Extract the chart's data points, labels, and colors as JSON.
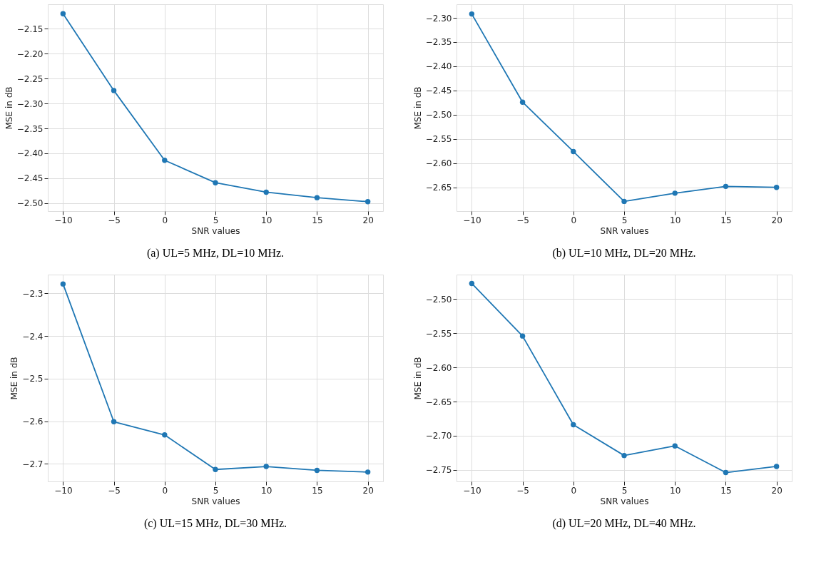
{
  "chart_data": [
    {
      "type": "line",
      "xlabel": "SNR values",
      "ylabel": "MSE in dB",
      "annotations": [
        "(a) UL=5 MHz, DL=10 MHz."
      ],
      "x": [
        -10,
        -5,
        0,
        5,
        10,
        15,
        20
      ],
      "series": [
        {
          "color": "#1f77b4",
          "values": [
            -2.12,
            -2.274,
            -2.414,
            -2.459,
            -2.478,
            -2.489,
            -2.497
          ]
        }
      ],
      "xlim": [
        -11.5,
        21.5
      ],
      "xticks": [
        {
          "value": -10,
          "label": "−10"
        },
        {
          "value": -5,
          "label": "−5"
        },
        {
          "value": 0,
          "label": "0"
        },
        {
          "value": 5,
          "label": "5"
        },
        {
          "value": 10,
          "label": "10"
        },
        {
          "value": 15,
          "label": "15"
        },
        {
          "value": 20,
          "label": "20"
        }
      ],
      "ylim": [
        -2.516,
        -2.101
      ],
      "yticks": [
        {
          "value": -2.5,
          "label": "−2.50"
        },
        {
          "value": -2.45,
          "label": "−2.45"
        },
        {
          "value": -2.4,
          "label": "−2.40"
        },
        {
          "value": -2.35,
          "label": "−2.35"
        },
        {
          "value": -2.3,
          "label": "−2.30"
        },
        {
          "value": -2.25,
          "label": "−2.25"
        },
        {
          "value": -2.2,
          "label": "−2.20"
        },
        {
          "value": -2.15,
          "label": "−2.15"
        }
      ],
      "grid": true,
      "marker": "circle",
      "line_style": "solid"
    },
    {
      "type": "line",
      "xlabel": "SNR values",
      "ylabel": "MSE in dB",
      "annotations": [
        "(b) UL=10 MHz, DL=20 MHz."
      ],
      "x": [
        -10,
        -5,
        0,
        5,
        10,
        15,
        20
      ],
      "series": [
        {
          "color": "#1f77b4",
          "values": [
            -2.292,
            -2.474,
            -2.576,
            -2.679,
            -2.662,
            -2.648,
            -2.65
          ]
        }
      ],
      "xlim": [
        -11.5,
        21.5
      ],
      "xticks": [
        {
          "value": -10,
          "label": "−10"
        },
        {
          "value": -5,
          "label": "−5"
        },
        {
          "value": 0,
          "label": "0"
        },
        {
          "value": 5,
          "label": "5"
        },
        {
          "value": 10,
          "label": "10"
        },
        {
          "value": 15,
          "label": "15"
        },
        {
          "value": 20,
          "label": "20"
        }
      ],
      "ylim": [
        -2.699,
        -2.272
      ],
      "yticks": [
        {
          "value": -2.65,
          "label": "−2.65"
        },
        {
          "value": -2.6,
          "label": "−2.60"
        },
        {
          "value": -2.55,
          "label": "−2.55"
        },
        {
          "value": -2.5,
          "label": "−2.50"
        },
        {
          "value": -2.45,
          "label": "−2.45"
        },
        {
          "value": -2.4,
          "label": "−2.40"
        },
        {
          "value": -2.35,
          "label": "−2.35"
        },
        {
          "value": -2.3,
          "label": "−2.30"
        }
      ],
      "grid": true,
      "marker": "circle",
      "line_style": "solid"
    },
    {
      "type": "line",
      "xlabel": "SNR values",
      "ylabel": "MSE in dB",
      "annotations": [
        "(c) UL=15 MHz, DL=30 MHz."
      ],
      "x": [
        -10,
        -5,
        0,
        5,
        10,
        15,
        20
      ],
      "series": [
        {
          "color": "#1f77b4",
          "values": [
            -2.278,
            -2.601,
            -2.632,
            -2.713,
            -2.706,
            -2.715,
            -2.719
          ]
        }
      ],
      "xlim": [
        -11.5,
        21.5
      ],
      "xticks": [
        {
          "value": -10,
          "label": "−10"
        },
        {
          "value": -5,
          "label": "−5"
        },
        {
          "value": 0,
          "label": "0"
        },
        {
          "value": 5,
          "label": "5"
        },
        {
          "value": 10,
          "label": "10"
        },
        {
          "value": 15,
          "label": "15"
        },
        {
          "value": 20,
          "label": "20"
        }
      ],
      "ylim": [
        -2.741,
        -2.256
      ],
      "yticks": [
        {
          "value": -2.7,
          "label": "−2.7"
        },
        {
          "value": -2.6,
          "label": "−2.6"
        },
        {
          "value": -2.5,
          "label": "−2.5"
        },
        {
          "value": -2.4,
          "label": "−2.4"
        },
        {
          "value": -2.3,
          "label": "−2.3"
        }
      ],
      "grid": true,
      "marker": "circle",
      "line_style": "solid"
    },
    {
      "type": "line",
      "xlabel": "SNR values",
      "ylabel": "MSE in dB",
      "annotations": [
        "(d) UL=20 MHz, DL=40 MHz."
      ],
      "x": [
        -10,
        -5,
        0,
        5,
        10,
        15,
        20
      ],
      "series": [
        {
          "color": "#1f77b4",
          "values": [
            -2.477,
            -2.554,
            -2.684,
            -2.729,
            -2.715,
            -2.754,
            -2.745
          ]
        }
      ],
      "xlim": [
        -11.5,
        21.5
      ],
      "xticks": [
        {
          "value": -10,
          "label": "−10"
        },
        {
          "value": -5,
          "label": "−5"
        },
        {
          "value": 0,
          "label": "0"
        },
        {
          "value": 5,
          "label": "5"
        },
        {
          "value": 10,
          "label": "10"
        },
        {
          "value": 15,
          "label": "15"
        },
        {
          "value": 20,
          "label": "20"
        }
      ],
      "ylim": [
        -2.767,
        -2.464
      ],
      "yticks": [
        {
          "value": -2.75,
          "label": "−2.75"
        },
        {
          "value": -2.7,
          "label": "−2.70"
        },
        {
          "value": -2.65,
          "label": "−2.65"
        },
        {
          "value": -2.6,
          "label": "−2.60"
        },
        {
          "value": -2.55,
          "label": "−2.55"
        },
        {
          "value": -2.5,
          "label": "−2.50"
        }
      ],
      "grid": true,
      "marker": "circle",
      "line_style": "solid"
    }
  ]
}
